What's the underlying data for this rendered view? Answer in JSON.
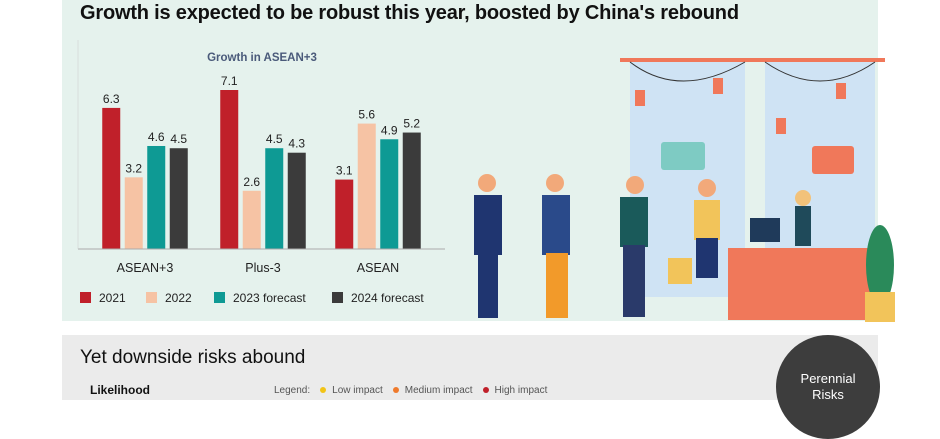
{
  "header": {
    "title": "Growth is expected to be robust this year, boosted by China's rebound"
  },
  "chart_data": {
    "type": "bar",
    "title": "Growth in ASEAN+3",
    "categories": [
      "ASEAN+3",
      "Plus-3",
      "ASEAN"
    ],
    "series": [
      {
        "name": "2021",
        "color": "#c0202a",
        "values": [
          6.3,
          7.1,
          3.1
        ]
      },
      {
        "name": "2022",
        "color": "#f6c3a4",
        "values": [
          3.2,
          2.6,
          5.6
        ]
      },
      {
        "name": "2023 forecast",
        "color": "#0e9a94",
        "values": [
          4.6,
          4.5,
          4.9
        ]
      },
      {
        "name": "2024 forecast",
        "color": "#3b3b3b",
        "values": [
          4.5,
          4.3,
          5.2
        ]
      }
    ],
    "ylim": [
      0,
      7.5
    ],
    "legend": "bottom"
  },
  "risks": {
    "title": "Yet downside risks abound",
    "axis_label": "Likelihood",
    "legend_label": "Legend:",
    "legend": [
      {
        "label": "Low impact",
        "color": "#f2c417"
      },
      {
        "label": "Medium impact",
        "color": "#ef7a2c"
      },
      {
        "label": "High impact",
        "color": "#c0202a"
      }
    ],
    "circle": {
      "line1": "Perennial",
      "line2": "Risks"
    }
  }
}
